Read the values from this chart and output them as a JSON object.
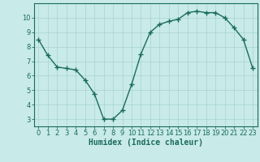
{
  "xlabel": "Humidex (Indice chaleur)",
  "x": [
    0,
    1,
    2,
    3,
    4,
    5,
    6,
    7,
    8,
    9,
    10,
    11,
    12,
    13,
    14,
    15,
    16,
    17,
    18,
    19,
    20,
    21,
    22,
    23
  ],
  "y": [
    8.5,
    7.4,
    6.6,
    6.5,
    6.4,
    5.7,
    4.75,
    3.0,
    3.0,
    3.6,
    5.4,
    7.5,
    9.0,
    9.55,
    9.75,
    9.9,
    10.35,
    10.45,
    10.35,
    10.35,
    10.0,
    9.3,
    8.5,
    6.5
  ],
  "line_color": "#1a6b5e",
  "marker": "+",
  "marker_size": 4,
  "marker_lw": 1.0,
  "line_width": 1.0,
  "bg_color": "#c8eae8",
  "grid_color": "#a8d4d0",
  "ylim": [
    2.5,
    11.0
  ],
  "xlim": [
    -0.5,
    23.5
  ],
  "yticks": [
    3,
    4,
    5,
    6,
    7,
    8,
    9,
    10
  ],
  "xticks": [
    0,
    1,
    2,
    3,
    4,
    5,
    6,
    7,
    8,
    9,
    10,
    11,
    12,
    13,
    14,
    15,
    16,
    17,
    18,
    19,
    20,
    21,
    22,
    23
  ],
  "tick_label_fontsize": 6,
  "xlabel_fontsize": 7,
  "tick_color": "#1a6b5e",
  "spine_color": "#1a6b5e"
}
